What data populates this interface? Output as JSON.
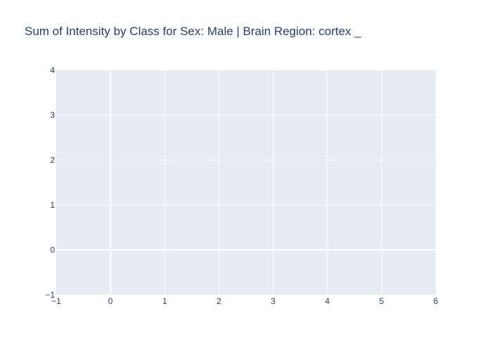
{
  "chart_data": {
    "type": "scatter",
    "title": "Sum of Intensity by Class for Sex: Male | Brain Region: cortex _",
    "xlabel": "",
    "ylabel": "",
    "xlim": [
      -1,
      6
    ],
    "ylim": [
      -1,
      4
    ],
    "x_ticks": [
      {
        "value": -1,
        "label": "−1"
      },
      {
        "value": 0,
        "label": "0"
      },
      {
        "value": 1,
        "label": "1"
      },
      {
        "value": 2,
        "label": "2"
      },
      {
        "value": 3,
        "label": "3"
      },
      {
        "value": 4,
        "label": "4"
      },
      {
        "value": 5,
        "label": "5"
      },
      {
        "value": 6,
        "label": "6"
      }
    ],
    "y_ticks": [
      {
        "value": -1,
        "label": "−1"
      },
      {
        "value": 0,
        "label": "0"
      },
      {
        "value": 1,
        "label": "1"
      },
      {
        "value": 2,
        "label": "2"
      },
      {
        "value": 3,
        "label": "3"
      },
      {
        "value": 4,
        "label": "4"
      }
    ],
    "series": [],
    "grid": true,
    "legend": "none",
    "colors": {
      "plot_background": "#e5ecf6",
      "paper_background": "#ffffff",
      "grid": "#ffffff",
      "text": "#2a3f5f"
    }
  }
}
